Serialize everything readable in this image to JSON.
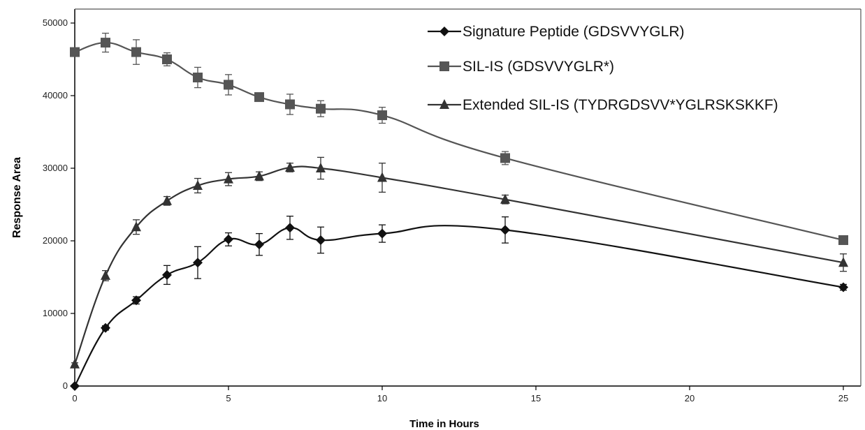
{
  "chart_data": {
    "type": "line",
    "title": "",
    "xlabel": "Time in Hours",
    "ylabel": "Response Area",
    "xlim": [
      0,
      25
    ],
    "ylim": [
      0,
      50000
    ],
    "x_ticks": [
      "0",
      "5",
      "10",
      "15",
      "20",
      "25"
    ],
    "y_ticks": [
      "0",
      "10000",
      "20000",
      "30000",
      "40000",
      "50000"
    ],
    "grid": false,
    "legend_position": "top-right",
    "series": [
      {
        "name": "Signature Peptide (GDSVVYGLR)",
        "marker": "diamond",
        "color": "#111111",
        "x": [
          0,
          1,
          2,
          3,
          4,
          5,
          6,
          7,
          8,
          10,
          14,
          25
        ],
        "values": [
          0,
          8000,
          11800,
          15300,
          17000,
          20200,
          19500,
          21800,
          20100,
          21000,
          21500,
          13600
        ],
        "errors": [
          0,
          300,
          500,
          1300,
          2200,
          900,
          1500,
          1600,
          1800,
          1200,
          1800,
          400
        ]
      },
      {
        "name": "SIL-IS (GDSVVYGLR*)",
        "marker": "square",
        "color": "#555555",
        "x": [
          0,
          1,
          2,
          3,
          4,
          5,
          6,
          7,
          8,
          10,
          14,
          25
        ],
        "values": [
          46000,
          47300,
          46000,
          45000,
          42500,
          41500,
          39800,
          38800,
          38200,
          37300,
          31400,
          20100
        ],
        "errors": [
          400,
          1300,
          1700,
          900,
          1400,
          1400,
          500,
          1400,
          1100,
          1100,
          900,
          500
        ]
      },
      {
        "name": "Extended SIL-IS (TYDRGDSVV*YGLRSKSKKF)",
        "marker": "triangle",
        "color": "#333333",
        "x": [
          0,
          1,
          2,
          3,
          4,
          5,
          6,
          7,
          8,
          10,
          14,
          25
        ],
        "values": [
          3000,
          15200,
          21900,
          25500,
          27600,
          28500,
          28900,
          30100,
          30000,
          28700,
          25700,
          17000
        ],
        "errors": [
          200,
          700,
          1000,
          600,
          1000,
          900,
          600,
          600,
          1500,
          2000,
          600,
          1200
        ]
      }
    ]
  }
}
